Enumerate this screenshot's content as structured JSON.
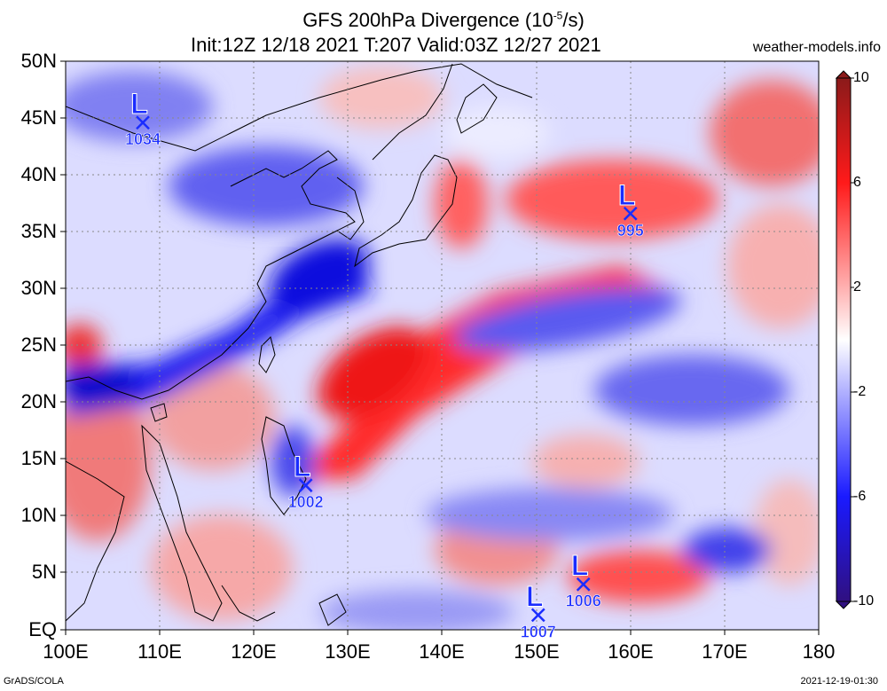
{
  "title": {
    "line1_prefix": "GFS 200hPa Divergence (10",
    "line1_exp": "-5",
    "line1_suffix": "/s)",
    "line2": "Init:12Z 12/18 2021 T:207 Valid:03Z 12/27 2021"
  },
  "site": "weather-models.info",
  "footer": {
    "left": "GrADS/COLA",
    "right": "2021-12-19-01:30"
  },
  "axes": {
    "lat_labels": [
      "50N",
      "45N",
      "40N",
      "35N",
      "30N",
      "25N",
      "20N",
      "15N",
      "10N",
      "5N",
      "EQ"
    ],
    "lon_labels": [
      "100E",
      "110E",
      "120E",
      "130E",
      "140E",
      "150E",
      "160E",
      "170E",
      "180"
    ],
    "lon_range": [
      100,
      180
    ],
    "lat_range": [
      0,
      50
    ],
    "grid": true
  },
  "colorbar": {
    "labels": [
      "10",
      "6",
      "2",
      "-2",
      "-6",
      "-10"
    ],
    "range": [
      -10,
      10
    ],
    "colors": {
      "max": "#8b1a1a",
      "pos": "#ff2020",
      "zero": "#ffffff",
      "neg": "#1a1aff",
      "min": "#301080"
    }
  },
  "lows": [
    {
      "lon": 108.2,
      "lat": 44.6,
      "value": "1034"
    },
    {
      "lon": 160.0,
      "lat": 36.6,
      "value": "995"
    },
    {
      "lon": 125.5,
      "lat": 12.7,
      "value": "1002"
    },
    {
      "lon": 155.0,
      "lat": 4.0,
      "value": "1006"
    },
    {
      "lon": 150.2,
      "lat": 1.3,
      "value": "1007"
    }
  ],
  "symbols": {
    "low_letter": "L",
    "low_color": "#1a2cff"
  }
}
